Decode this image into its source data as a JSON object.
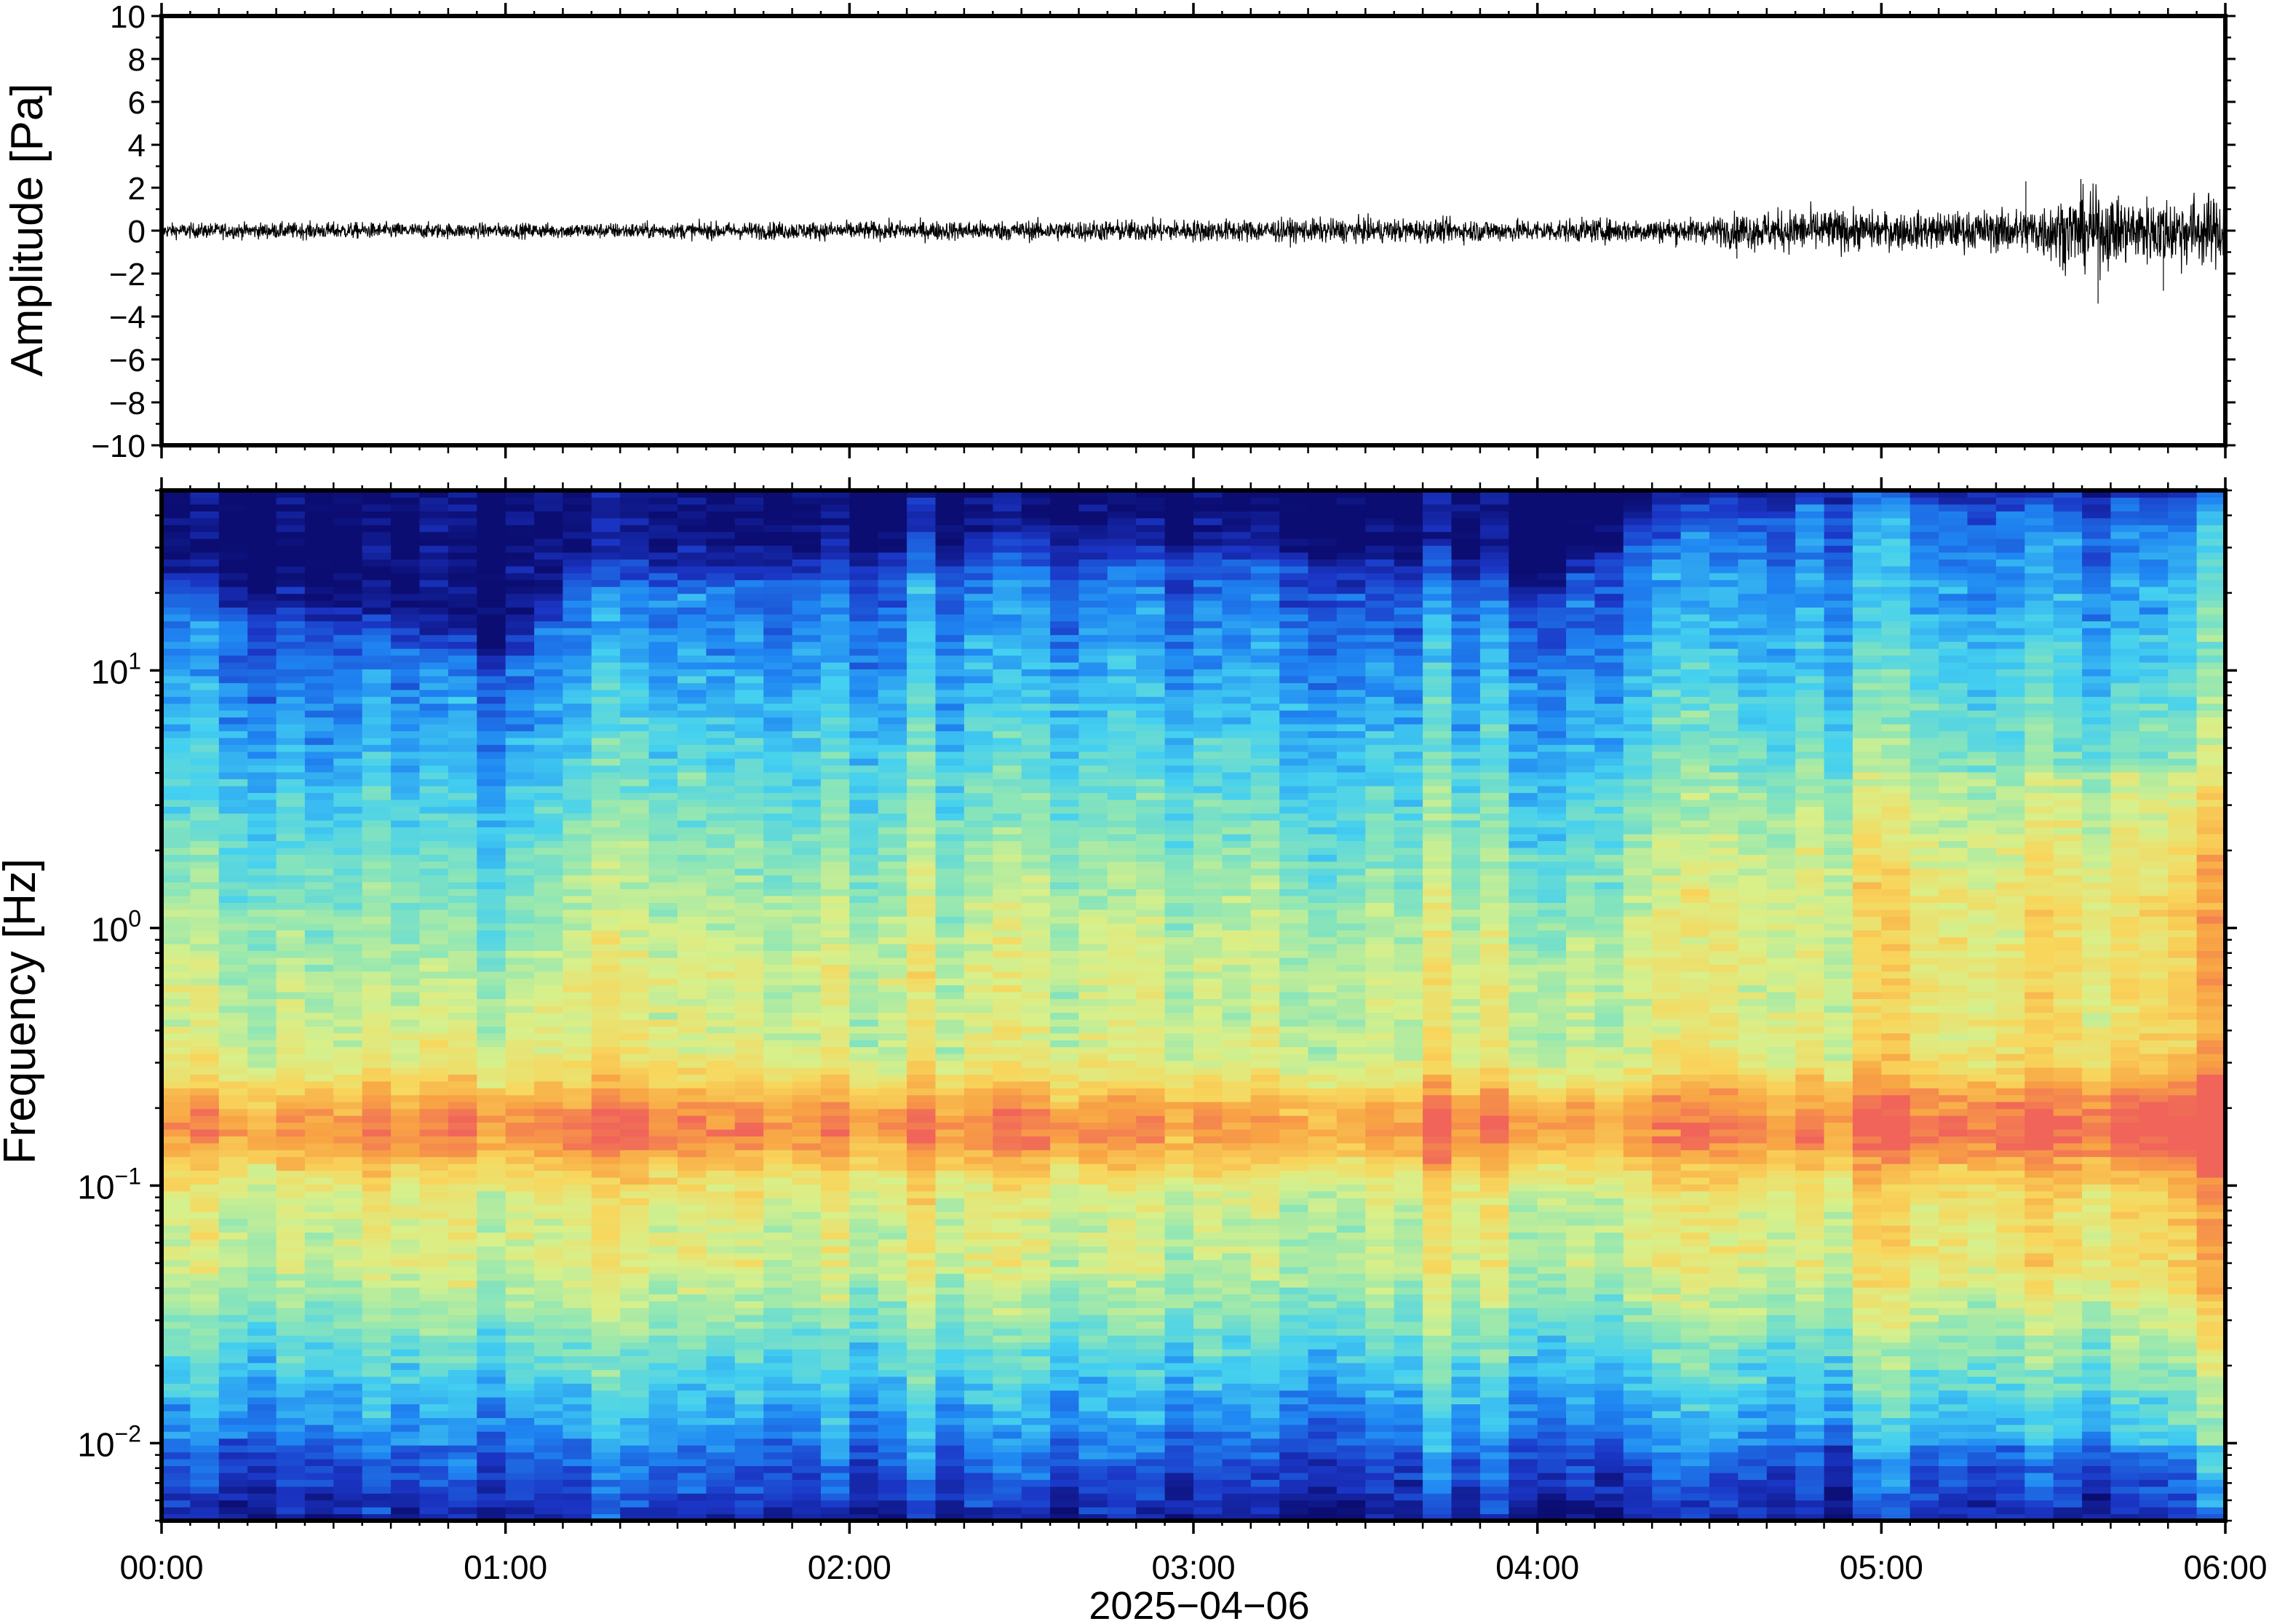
{
  "chart_data": [
    {
      "type": "line",
      "panel": "waveform",
      "ylabel": "Amplitude [Pa]",
      "ylim": [
        -10,
        10
      ],
      "yticks": [
        10,
        8,
        6,
        4,
        2,
        0,
        -2,
        -4,
        -6,
        -8,
        -10
      ],
      "ytick_labels": [
        "10",
        "8",
        "6",
        "4",
        "2",
        "0",
        "−2",
        "−4",
        "−6",
        "−8",
        "−10"
      ],
      "xlim_hours": [
        0,
        6
      ],
      "series": [
        {
          "x_hours": [
            0,
            0.5,
            1,
            1.5,
            2,
            2.5,
            3,
            3.5,
            4,
            4.5,
            4.6,
            4.8,
            5,
            5.2,
            5.4,
            5.5,
            5.6,
            5.7,
            5.8,
            5.9,
            6
          ],
          "envelope_pa": [
            0.4,
            0.45,
            0.4,
            0.45,
            0.5,
            0.55,
            0.6,
            0.65,
            0.6,
            0.7,
            1.0,
            1.2,
            1.0,
            1.0,
            1.2,
            1.7,
            2.2,
            1.8,
            1.8,
            2.0,
            1.8
          ],
          "peaks": [
            {
              "x_hours": 5.42,
              "y": 2.3
            },
            {
              "x_hours": 5.63,
              "y": -3.4
            },
            {
              "x_hours": 5.82,
              "y": -2.8
            },
            {
              "x_hours": 4.58,
              "y": -1.3
            }
          ]
        }
      ]
    },
    {
      "type": "heatmap",
      "panel": "spectrogram",
      "ylabel": "Frequency [Hz]",
      "yscale": "log",
      "ylim": [
        0.005,
        50
      ],
      "yticks": [
        {
          "value": 0.01,
          "base": "10",
          "exp": "−2"
        },
        {
          "value": 0.1,
          "base": "10",
          "exp": "−1"
        },
        {
          "value": 1,
          "base": "10",
          "exp": "0"
        },
        {
          "value": 10,
          "base": "10",
          "exp": "1"
        }
      ],
      "xlabel": "2025−04−06",
      "xticks": [
        {
          "hours": 0,
          "label": "00:00"
        },
        {
          "hours": 1,
          "label": "01:00"
        },
        {
          "hours": 2,
          "label": "02:00"
        },
        {
          "hours": 3,
          "label": "03:00"
        },
        {
          "hours": 4,
          "label": "04:00"
        },
        {
          "hours": 5,
          "label": "05:00"
        },
        {
          "hours": 6,
          "label": "06:00"
        }
      ],
      "colormap": [
        "#0b0d72",
        "#1b36c6",
        "#1f86f2",
        "#44d0f0",
        "#8de6b6",
        "#d8f08a",
        "#f8d65c",
        "#f8a444",
        "#f0645a"
      ],
      "microbarom_band_hz": [
        0.1,
        0.3
      ],
      "microbarom_peak_hz": 0.17,
      "upper_cutoff_hz": [
        {
          "hours": 0,
          "hz": 20
        },
        {
          "hours": 1,
          "hz": 10
        },
        {
          "hours": 1.2,
          "hz": 20
        },
        {
          "hours": 2.4,
          "hz": 25
        },
        {
          "hours": 3.2,
          "hz": 28
        },
        {
          "hours": 4,
          "hz": 18
        },
        {
          "hours": 4.25,
          "hz": 30
        },
        {
          "hours": 4.8,
          "hz": 45
        },
        {
          "hours": 5.5,
          "hz": 40
        },
        {
          "hours": 6,
          "hz": 40
        }
      ],
      "grid": false
    }
  ]
}
